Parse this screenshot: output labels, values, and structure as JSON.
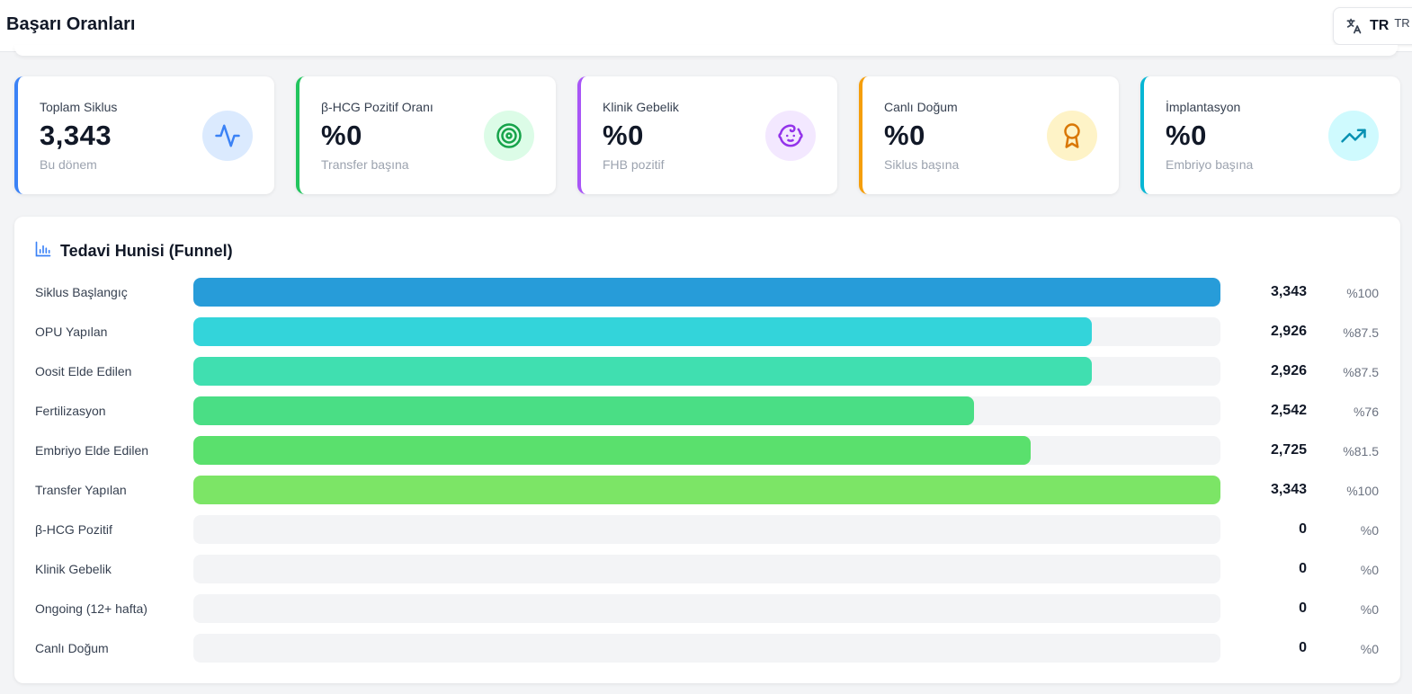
{
  "header": {
    "title": "Başarı Oranları"
  },
  "language": {
    "code": "TR",
    "code_secondary": "TR",
    "icon": "translate-icon"
  },
  "stats": [
    {
      "id": "total-cycles",
      "label": "Toplam Siklus",
      "value": "3,343",
      "sub": "Bu dönem",
      "accent": "#3b82f6",
      "icon_bg": "#dbeafe",
      "icon_color": "#3b82f6",
      "icon": "activity-icon"
    },
    {
      "id": "bhcg-rate",
      "label": "β-HCG Pozitif Oranı",
      "value": "%0",
      "sub": "Transfer başına",
      "accent": "#22c55e",
      "icon_bg": "#dcfce7",
      "icon_color": "#16a34a",
      "icon": "target-icon"
    },
    {
      "id": "clinical-pregnancy",
      "label": "Klinik Gebelik",
      "value": "%0",
      "sub": "FHB pozitif",
      "accent": "#a855f7",
      "icon_bg": "#f3e8ff",
      "icon_color": "#9333ea",
      "icon": "baby-icon"
    },
    {
      "id": "live-birth",
      "label": "Canlı Doğum",
      "value": "%0",
      "sub": "Siklus başına",
      "accent": "#f59e0b",
      "icon_bg": "#fef3c7",
      "icon_color": "#d97706",
      "icon": "award-icon"
    },
    {
      "id": "implantation",
      "label": "İmplantasyon",
      "value": "%0",
      "sub": "Embriyo başına",
      "accent": "#06b6d4",
      "icon_bg": "#cffafe",
      "icon_color": "#0891b2",
      "icon": "trending-up-icon"
    }
  ],
  "funnel": {
    "title": "Tedavi Hunisi (Funnel)",
    "icon": "bar-chart-icon",
    "rows": [
      {
        "label": "Siklus Başlangıç",
        "count": "3,343",
        "pct": "%100",
        "fraction": 1.0,
        "color": "#279cd9"
      },
      {
        "label": "OPU Yapılan",
        "count": "2,926",
        "pct": "%87.5",
        "fraction": 0.875,
        "color": "#33d4da"
      },
      {
        "label": "Oosit Elde Edilen",
        "count": "2,926",
        "pct": "%87.5",
        "fraction": 0.875,
        "color": "#40dfb0"
      },
      {
        "label": "Fertilizasyon",
        "count": "2,542",
        "pct": "%76",
        "fraction": 0.76,
        "color": "#4ade85"
      },
      {
        "label": "Embriyo Elde Edilen",
        "count": "2,725",
        "pct": "%81.5",
        "fraction": 0.815,
        "color": "#5ae06d"
      },
      {
        "label": "Transfer Yapılan",
        "count": "3,343",
        "pct": "%100",
        "fraction": 1.0,
        "color": "#7ce566"
      },
      {
        "label": "β-HCG Pozitif",
        "count": "0",
        "pct": "%0",
        "fraction": 0,
        "color": "#86efac"
      },
      {
        "label": "Klinik Gebelik",
        "count": "0",
        "pct": "%0",
        "fraction": 0,
        "color": "#86efac"
      },
      {
        "label": "Ongoing (12+ hafta)",
        "count": "0",
        "pct": "%0",
        "fraction": 0,
        "color": "#86efac"
      },
      {
        "label": "Canlı Doğum",
        "count": "0",
        "pct": "%0",
        "fraction": 0,
        "color": "#86efac"
      }
    ]
  }
}
